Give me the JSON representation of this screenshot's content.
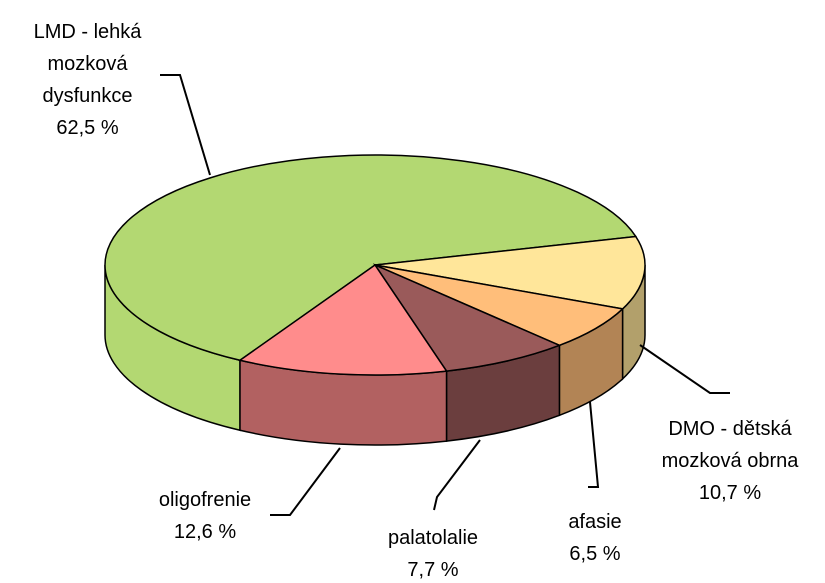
{
  "chart_data": {
    "type": "pie",
    "categories": [
      "LMD - lehká mozková dysfunkce",
      "DMO - dětská mozková obrna",
      "afasie",
      "palatolalie",
      "oligofrenie"
    ],
    "values": [
      62.5,
      10.7,
      6.5,
      7.7,
      12.6
    ],
    "value_labels": [
      "62,5 %",
      "10,7 %",
      "6,5 %",
      "7,7 %",
      "12,6 %"
    ],
    "colors": [
      "#b3d872",
      "#ffe69a",
      "#ffbe7a",
      "#9a5a5a",
      "#ff8c8c"
    ]
  }
}
